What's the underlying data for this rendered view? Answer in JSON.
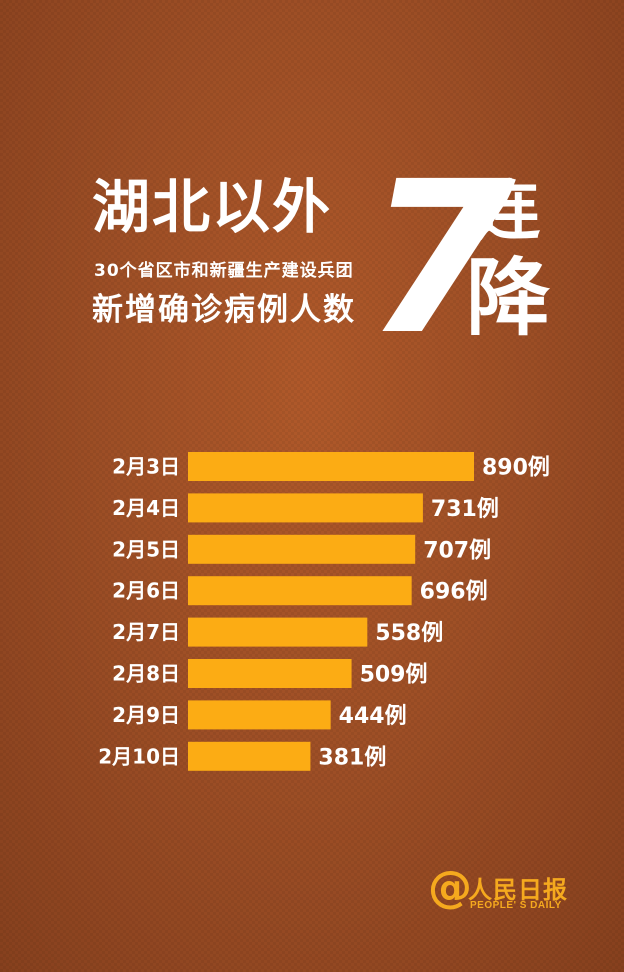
{
  "header": {
    "headline": "湖北以外",
    "subline1": "30个省区市和新疆生产建设兵团",
    "subline2": "新增确诊病例人数",
    "big_number": "7",
    "lian": "连",
    "jiang": "降"
  },
  "logo": {
    "at_symbol": "@",
    "name": "人民日报",
    "sub": "PEOPLE' S DAILY"
  },
  "colors": {
    "bar": "#fcac14",
    "label": "#ffffff"
  },
  "chart_data": {
    "type": "bar",
    "orientation": "horizontal",
    "categories": [
      "2月3日",
      "2月4日",
      "2月5日",
      "2月6日",
      "2月7日",
      "2月8日",
      "2月9日",
      "2月10日"
    ],
    "values": [
      890,
      731,
      707,
      696,
      558,
      509,
      444,
      381
    ],
    "value_labels": [
      "890例",
      "731例",
      "707例",
      "696例",
      "558例",
      "509例",
      "444例",
      "381例"
    ],
    "grid": false,
    "legend": "none"
  }
}
